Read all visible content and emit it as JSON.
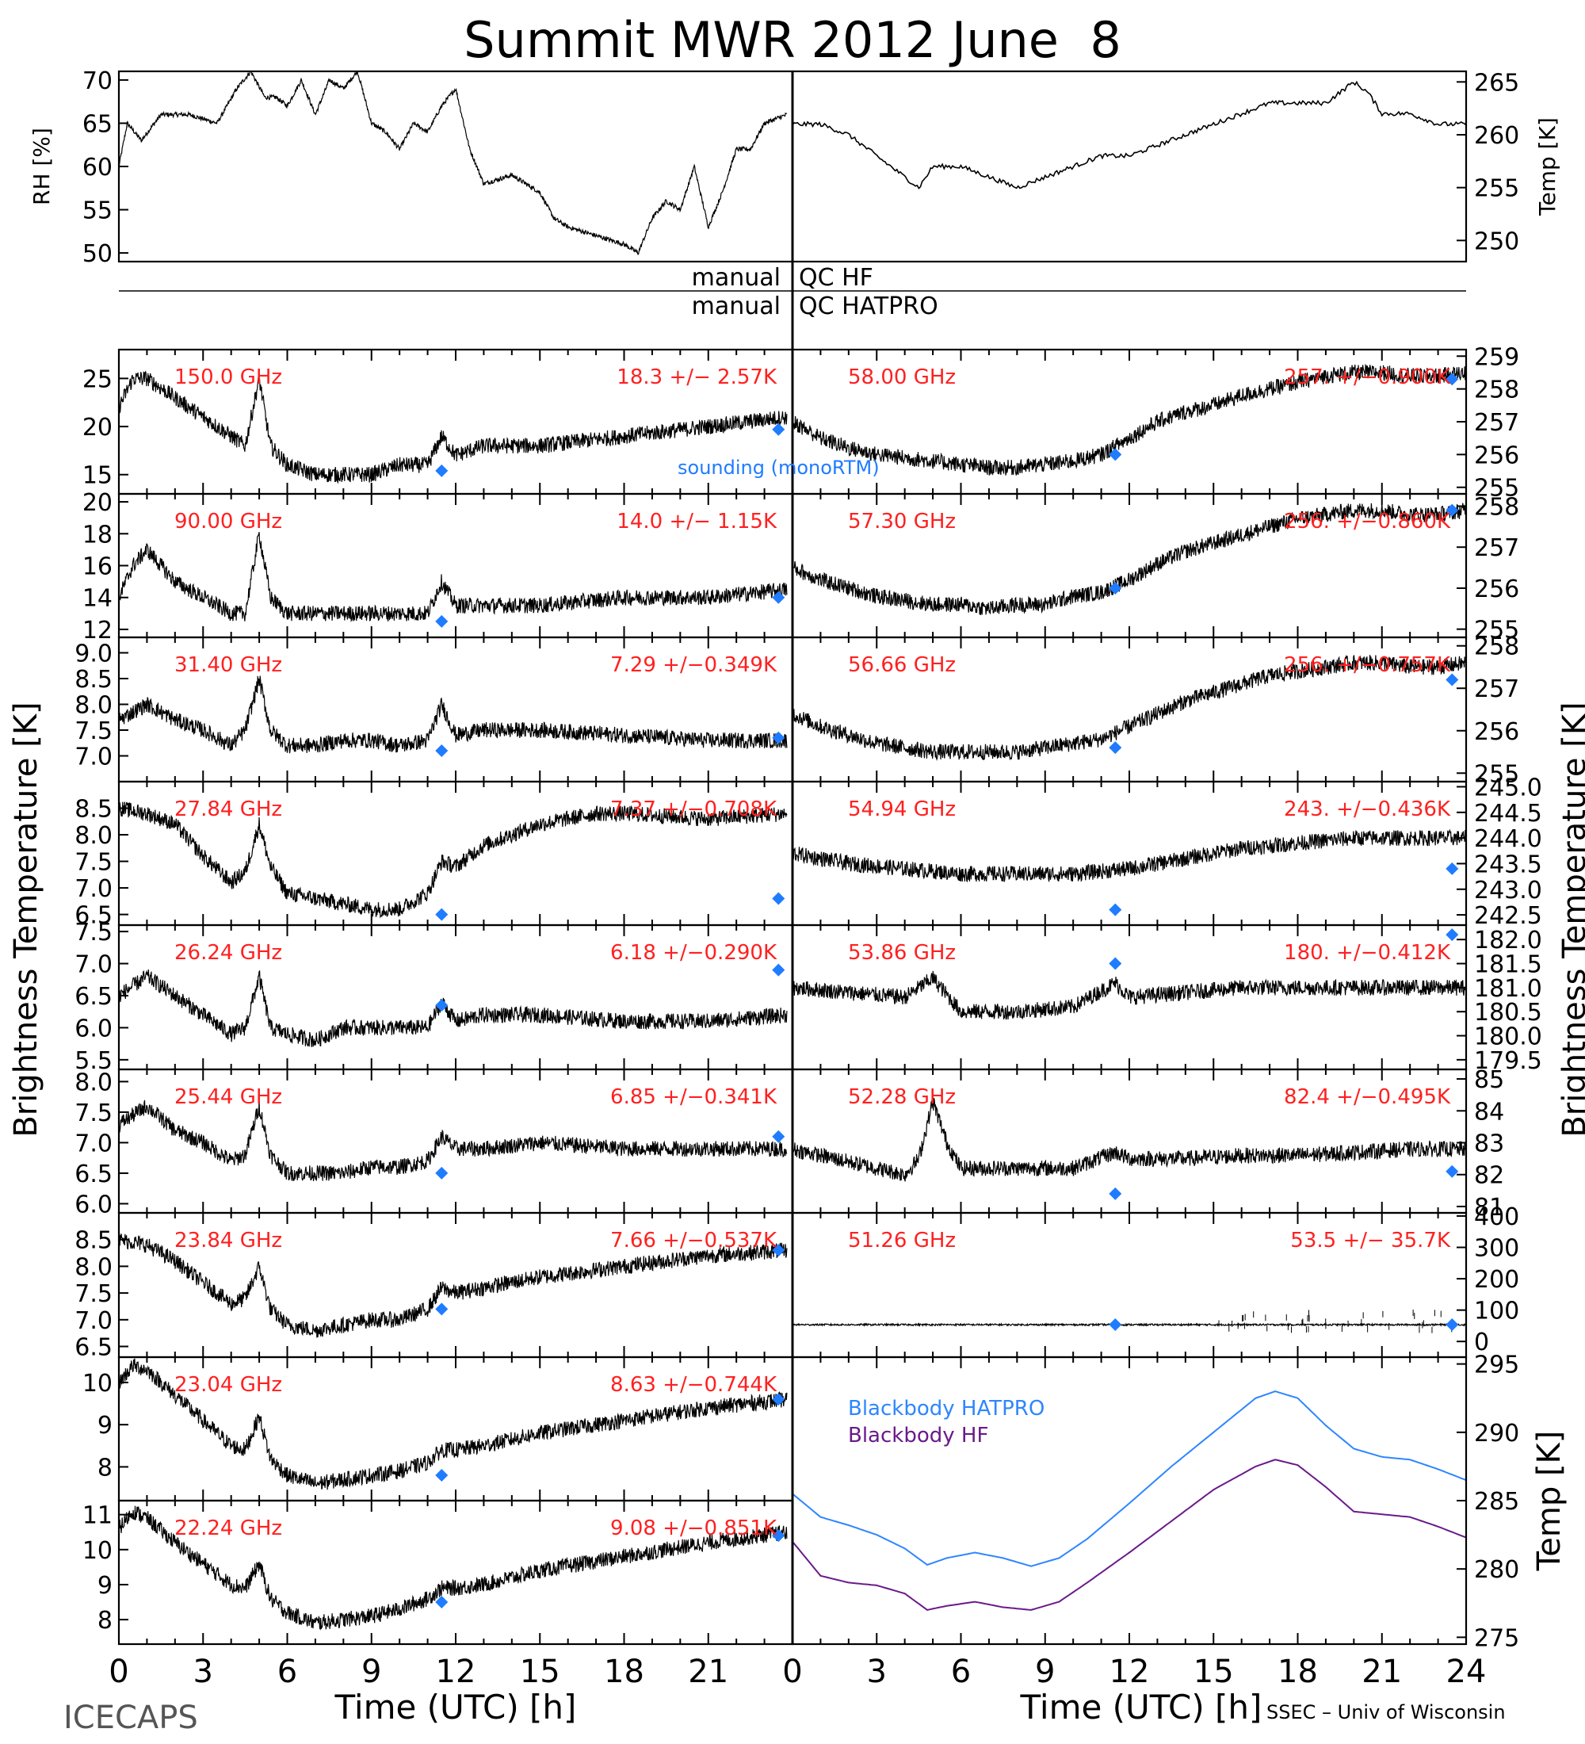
{
  "figure": {
    "title": "Summit MWR 2012 June  8",
    "left_footer": "ICECAPS",
    "right_footer": "SSEC – Univ of Wisconsin",
    "left_ylabel": "Brightness Temperature [K]",
    "right_ylabel": "Brightness Temperature [K]",
    "xlabel": "Time (UTC) [h]",
    "qc_labels": [
      "manual",
      "QC HF",
      "manual",
      "QC HATPRO"
    ],
    "sounding_label": "sounding (monoRTM)",
    "colors": {
      "frequency_label": "#ff2020",
      "sounding": "#1f7cff",
      "blackbody_hatpro": "#2e86ff",
      "blackbody_hf": "#6a1a8a",
      "trace": "#000000"
    }
  },
  "chart_data": [
    {
      "type": "line",
      "id": "rh",
      "ylabel": "RH [%]",
      "ylim": [
        49,
        71
      ],
      "yticks": [
        50,
        55,
        60,
        65,
        70
      ],
      "x": [
        0,
        0.3,
        0.8,
        1.5,
        2.5,
        3.5,
        4.2,
        4.7,
        5.2,
        5.6,
        6.0,
        6.5,
        7.0,
        7.5,
        8.0,
        8.5,
        9.0,
        9.5,
        10.0,
        10.5,
        11.0,
        11.5,
        12.0,
        12.5,
        13.0,
        14.0,
        15.0,
        15.5,
        16.0,
        17.0,
        18.0,
        18.5,
        19.0,
        19.5,
        20.0,
        20.5,
        21.0,
        21.5,
        22.0,
        22.5,
        23.0,
        23.8
      ],
      "values": [
        60,
        65,
        63,
        66,
        66,
        65,
        69,
        71,
        68,
        68,
        67,
        70,
        66,
        70,
        69,
        71,
        65,
        64,
        62,
        65,
        64,
        67,
        69,
        62,
        58,
        59,
        57,
        54,
        53,
        52,
        51,
        50,
        54,
        56,
        55,
        60,
        53,
        57,
        62,
        62,
        65,
        66
      ]
    },
    {
      "type": "line",
      "id": "temp",
      "ylabel": "Temp [K]",
      "ylim": [
        248,
        266
      ],
      "yticks": [
        250,
        255,
        260,
        265
      ],
      "x": [
        0,
        1,
        2,
        3,
        4,
        4.5,
        5,
        6,
        7,
        8,
        9,
        10,
        11,
        12,
        13,
        14,
        15,
        16,
        17,
        18,
        19,
        20,
        20.5,
        21,
        21.5,
        22,
        23,
        24
      ],
      "values": [
        261,
        261,
        260,
        258,
        256,
        255,
        257,
        257,
        256,
        255,
        256,
        257,
        258,
        258,
        259,
        260,
        261,
        262,
        263,
        263,
        263,
        265,
        264,
        262,
        262,
        262,
        261,
        261
      ]
    },
    {
      "type": "line",
      "id": "hf150",
      "frequency": "150.0 GHz",
      "stats": "18.3 +/−  2.57K",
      "ylim": [
        13,
        28
      ],
      "yticks": [
        15,
        20,
        25
      ],
      "x": [
        0,
        0.5,
        1,
        2,
        3,
        4,
        4.5,
        5,
        5.4,
        6,
        7,
        8,
        9,
        10,
        11,
        11.5,
        12,
        13,
        15,
        18,
        21,
        23.8
      ],
      "values": [
        22,
        25,
        25,
        23,
        21,
        19,
        18,
        25,
        18,
        16,
        15,
        15,
        15,
        16,
        16,
        19,
        17,
        18,
        18,
        19,
        20,
        21
      ],
      "sounding": [
        [
          11.5,
          15.4
        ],
        [
          23.5,
          19.7
        ]
      ]
    },
    {
      "type": "line",
      "id": "hf90",
      "frequency": "90.00 GHz",
      "stats": "14.0 +/−  1.15K",
      "ylim": [
        11.5,
        20.5
      ],
      "yticks": [
        12,
        14,
        16,
        18,
        20
      ],
      "x": [
        0,
        0.5,
        1,
        2,
        3,
        4,
        4.5,
        5,
        5.4,
        6,
        7,
        8,
        9,
        10,
        11,
        11.5,
        12,
        13,
        15,
        18,
        21,
        23.8
      ],
      "values": [
        14,
        16,
        17,
        15,
        14,
        13,
        13,
        18,
        14,
        13,
        13,
        13,
        13,
        13,
        13,
        15,
        13.5,
        13.5,
        13.5,
        14,
        14,
        14.5
      ],
      "sounding": [
        [
          11.5,
          12.5
        ],
        [
          23.5,
          14
        ]
      ]
    },
    {
      "type": "line",
      "id": "hf31",
      "frequency": "31.40 GHz",
      "stats": "7.29 +/−0.349K",
      "ylim": [
        6.5,
        9.3
      ],
      "yticks": [
        7.0,
        7.5,
        8.0,
        8.5,
        9.0
      ],
      "x": [
        0,
        1,
        2,
        3,
        4,
        4.5,
        5,
        5.4,
        6,
        7,
        8,
        9,
        10,
        11,
        11.5,
        12,
        13,
        15,
        18,
        21,
        23.8
      ],
      "values": [
        7.7,
        8.0,
        7.7,
        7.5,
        7.2,
        7.5,
        8.5,
        7.5,
        7.2,
        7.2,
        7.3,
        7.3,
        7.2,
        7.3,
        8.0,
        7.4,
        7.5,
        7.5,
        7.4,
        7.3,
        7.3
      ],
      "sounding": [
        [
          11.5,
          7.1
        ],
        [
          23.5,
          7.35
        ]
      ]
    },
    {
      "type": "line",
      "id": "hf27",
      "frequency": "27.84 GHz",
      "stats": "7.37 +/−0.708K",
      "ylim": [
        6.3,
        9.0
      ],
      "yticks": [
        6.5,
        7.0,
        7.5,
        8.0,
        8.5
      ],
      "x": [
        0,
        1,
        2,
        3,
        4,
        4.5,
        5,
        5.4,
        6,
        7,
        8,
        9,
        10,
        11,
        11.5,
        12,
        13,
        15,
        17,
        18,
        21,
        23.8
      ],
      "values": [
        8.5,
        8.4,
        8.2,
        7.6,
        7.1,
        7.3,
        8.2,
        7.4,
        6.9,
        6.8,
        6.7,
        6.6,
        6.6,
        6.9,
        7.5,
        7.4,
        7.8,
        8.2,
        8.4,
        8.4,
        8.3,
        8.4
      ],
      "sounding": [
        [
          11.5,
          6.5
        ],
        [
          23.5,
          6.8
        ]
      ]
    },
    {
      "type": "line",
      "id": "hf26",
      "frequency": "26.24 GHz",
      "stats": "6.18 +/−0.290K",
      "ylim": [
        5.35,
        7.6
      ],
      "yticks": [
        5.5,
        6.0,
        6.5,
        7.0,
        7.5
      ],
      "x": [
        0,
        1,
        2,
        3,
        4,
        4.5,
        5,
        5.4,
        6,
        7,
        8,
        9,
        10,
        11,
        11.5,
        12,
        13,
        15,
        18,
        21,
        23.8
      ],
      "values": [
        6.5,
        6.8,
        6.5,
        6.2,
        5.9,
        6.0,
        6.8,
        6.0,
        5.9,
        5.8,
        6.0,
        6.0,
        6.0,
        6.0,
        6.4,
        6.1,
        6.2,
        6.2,
        6.1,
        6.1,
        6.2
      ],
      "sounding": [
        [
          11.5,
          6.35
        ],
        [
          23.5,
          6.9
        ]
      ]
    },
    {
      "type": "line",
      "id": "hf25",
      "frequency": "25.44 GHz",
      "stats": "6.85 +/−0.341K",
      "ylim": [
        5.85,
        8.2
      ],
      "yticks": [
        6.0,
        6.5,
        7.0,
        7.5,
        8.0
      ],
      "x": [
        0,
        1,
        2,
        3,
        4,
        4.5,
        5,
        5.4,
        6,
        7,
        8,
        9,
        10,
        11,
        11.5,
        12,
        13,
        15,
        18,
        21,
        23.8
      ],
      "values": [
        7.3,
        7.6,
        7.2,
        7.0,
        6.7,
        6.8,
        7.6,
        6.8,
        6.5,
        6.5,
        6.5,
        6.6,
        6.6,
        6.7,
        7.1,
        6.9,
        6.9,
        7.0,
        6.9,
        6.9,
        6.9
      ],
      "sounding": [
        [
          11.5,
          6.5
        ],
        [
          23.5,
          7.1
        ]
      ]
    },
    {
      "type": "line",
      "id": "hf238",
      "frequency": "23.84 GHz",
      "stats": "7.66 +/−0.537K",
      "ylim": [
        6.3,
        9.0
      ],
      "yticks": [
        6.5,
        7.0,
        7.5,
        8.0,
        8.5
      ],
      "x": [
        0,
        1,
        2,
        3,
        4,
        4.5,
        5,
        5.4,
        6,
        7,
        8,
        9,
        10,
        11,
        11.5,
        12,
        13,
        15,
        18,
        21,
        23.8
      ],
      "values": [
        8.5,
        8.4,
        8.1,
        7.7,
        7.3,
        7.4,
        8.0,
        7.2,
        6.9,
        6.8,
        6.9,
        7.0,
        7.0,
        7.2,
        7.6,
        7.5,
        7.6,
        7.8,
        8.0,
        8.2,
        8.3
      ],
      "sounding": [
        [
          11.5,
          7.2
        ],
        [
          23.5,
          8.3
        ]
      ]
    },
    {
      "type": "line",
      "id": "hf230",
      "frequency": "23.04 GHz",
      "stats": "8.63 +/−0.744K",
      "ylim": [
        7.2,
        10.6
      ],
      "yticks": [
        8,
        9,
        10
      ],
      "x": [
        0,
        0.5,
        1,
        2,
        3,
        4,
        4.5,
        5,
        5.4,
        6,
        7,
        8,
        9,
        10,
        11,
        11.5,
        12,
        13,
        15,
        18,
        21,
        23.8
      ],
      "values": [
        10,
        10.4,
        10.3,
        9.7,
        9.1,
        8.5,
        8.4,
        9.2,
        8.2,
        7.8,
        7.6,
        7.7,
        7.8,
        7.9,
        8.1,
        8.4,
        8.4,
        8.5,
        8.8,
        9.1,
        9.4,
        9.6
      ],
      "sounding": [
        [
          11.5,
          7.8
        ],
        [
          23.5,
          9.6
        ]
      ]
    },
    {
      "type": "line",
      "id": "hf222",
      "frequency": "22.24 GHz",
      "stats": "9.08 +/−0.851K",
      "ylim": [
        7.3,
        11.4
      ],
      "yticks": [
        8,
        9,
        10,
        11
      ],
      "x": [
        0,
        0.5,
        1,
        2,
        3,
        4,
        4.5,
        5,
        5.4,
        6,
        7,
        8,
        9,
        10,
        11,
        11.5,
        12,
        13,
        15,
        18,
        21,
        23.8
      ],
      "values": [
        10.6,
        11.1,
        10.9,
        10.2,
        9.6,
        9.0,
        8.9,
        9.6,
        8.6,
        8.2,
        7.9,
        8.0,
        8.1,
        8.3,
        8.6,
        8.9,
        8.9,
        9.0,
        9.4,
        9.8,
        10.2,
        10.5
      ],
      "sounding": [
        [
          11.5,
          8.5
        ],
        [
          23.5,
          10.4
        ]
      ]
    },
    {
      "type": "line",
      "id": "v58",
      "frequency": "58.00 GHz",
      "stats": "257. +/−0.900K",
      "ylim": [
        254.8,
        259.2
      ],
      "yticks": [
        255,
        256,
        257,
        258,
        259
      ],
      "x": [
        0,
        1,
        2,
        3,
        4,
        5,
        6,
        7,
        8,
        9,
        10,
        11,
        12,
        13,
        14,
        15,
        16,
        17,
        18,
        19,
        20,
        21,
        22,
        23,
        24
      ],
      "values": [
        257,
        256.5,
        256.2,
        256,
        255.9,
        255.8,
        255.7,
        255.6,
        255.6,
        255.7,
        255.8,
        256,
        256.5,
        257,
        257.3,
        257.5,
        257.8,
        258,
        258.2,
        258.4,
        258.5,
        258.5,
        258.4,
        258.4,
        258.5
      ],
      "sounding": [
        [
          11.5,
          256
        ],
        [
          23.5,
          258.3
        ]
      ]
    },
    {
      "type": "line",
      "id": "v573",
      "frequency": "57.30 GHz",
      "stats": "256. +/−0.860K",
      "ylim": [
        254.8,
        258.3
      ],
      "yticks": [
        255,
        256,
        257,
        258
      ],
      "x": [
        0,
        1,
        2,
        3,
        4,
        5,
        6,
        7,
        8,
        9,
        10,
        11,
        12,
        13,
        14,
        15,
        16,
        17,
        18,
        19,
        20,
        21,
        22,
        23,
        24
      ],
      "values": [
        256.5,
        256.2,
        256,
        255.8,
        255.7,
        255.6,
        255.6,
        255.5,
        255.6,
        255.6,
        255.8,
        255.9,
        256.2,
        256.6,
        256.9,
        257.1,
        257.3,
        257.5,
        257.7,
        257.8,
        257.9,
        257.9,
        257.8,
        257.8,
        257.9
      ],
      "sounding": [
        [
          11.5,
          256
        ],
        [
          23.5,
          257.9
        ]
      ]
    },
    {
      "type": "line",
      "id": "v5666",
      "frequency": "56.66 GHz",
      "stats": "256. +/−0.757K",
      "ylim": [
        254.8,
        258.2
      ],
      "yticks": [
        255,
        256,
        257,
        258
      ],
      "x": [
        0,
        1,
        2,
        3,
        4,
        5,
        6,
        7,
        8,
        9,
        10,
        11,
        12,
        13,
        14,
        15,
        16,
        17,
        18,
        19,
        20,
        21,
        22,
        23,
        24
      ],
      "values": [
        256.4,
        256.1,
        255.9,
        255.7,
        255.6,
        255.5,
        255.5,
        255.5,
        255.5,
        255.6,
        255.7,
        255.8,
        256.1,
        256.4,
        256.7,
        256.9,
        257.1,
        257.3,
        257.4,
        257.5,
        257.6,
        257.6,
        257.5,
        257.5,
        257.6
      ],
      "sounding": [
        [
          11.5,
          255.6
        ],
        [
          23.5,
          257.2
        ]
      ]
    },
    {
      "type": "line",
      "id": "v5494",
      "frequency": "54.94 GHz",
      "stats": "243. +/−0.436K",
      "ylim": [
        242.3,
        245.1
      ],
      "yticks": [
        242.5,
        243.0,
        243.5,
        244.0,
        244.5,
        245.0
      ],
      "x": [
        0,
        2,
        4,
        6,
        8,
        10,
        12,
        14,
        16,
        18,
        20,
        22,
        24
      ],
      "values": [
        243.7,
        243.5,
        243.4,
        243.3,
        243.3,
        243.3,
        243.4,
        243.6,
        243.8,
        243.9,
        244.0,
        244.0,
        244.0
      ],
      "sounding": [
        [
          11.5,
          242.6
        ],
        [
          23.5,
          243.4
        ]
      ]
    },
    {
      "type": "line",
      "id": "v5386",
      "frequency": "53.86 GHz",
      "stats": "180. +/−0.412K",
      "ylim": [
        179.3,
        182.3
      ],
      "yticks": [
        179.5,
        180.0,
        180.5,
        181.0,
        181.5,
        182.0
      ],
      "x": [
        0,
        2,
        4,
        5,
        6,
        8,
        10,
        11.5,
        12,
        14,
        16,
        18,
        20,
        22,
        24
      ],
      "values": [
        181.0,
        180.9,
        180.8,
        181.2,
        180.5,
        180.5,
        180.6,
        181.1,
        180.8,
        180.9,
        181.0,
        181.0,
        181.0,
        181.0,
        181.0
      ],
      "sounding": [
        [
          11.5,
          181.5
        ],
        [
          23.5,
          182.1
        ]
      ]
    },
    {
      "type": "line",
      "id": "v5228",
      "frequency": "52.28 GHz",
      "stats": "82.4 +/−0.495K",
      "ylim": [
        80.8,
        85.3
      ],
      "yticks": [
        81,
        82,
        83,
        84,
        85
      ],
      "x": [
        0,
        1,
        2,
        3,
        4,
        4.5,
        5,
        5.5,
        6,
        8,
        10,
        11.5,
        12,
        14,
        16,
        18,
        20,
        22,
        24
      ],
      "values": [
        82.8,
        82.6,
        82.4,
        82.2,
        82.0,
        82.5,
        84.3,
        83.0,
        82.2,
        82.2,
        82.2,
        82.7,
        82.5,
        82.5,
        82.6,
        82.6,
        82.7,
        82.8,
        82.8
      ],
      "sounding": [
        [
          11.5,
          81.4
        ],
        [
          23.5,
          82.1
        ]
      ]
    },
    {
      "type": "line",
      "id": "v5126",
      "frequency": "51.26 GHz",
      "stats": "53.5 +/−  35.7K",
      "ylim": [
        -50,
        410
      ],
      "yticks": [
        0,
        100,
        200,
        300,
        400
      ],
      "x": [
        0,
        24
      ],
      "values": [
        53.5,
        53.5
      ],
      "sounding": [
        [
          11.5,
          53.5
        ],
        [
          23.5,
          53.5
        ]
      ]
    },
    {
      "type": "line",
      "id": "blackbody",
      "ylabel": "Temp [K]",
      "ylim": [
        274.5,
        295.5
      ],
      "yticks": [
        275,
        280,
        285,
        290,
        295
      ],
      "x": [
        0,
        1,
        2,
        3,
        4,
        4.8,
        5.5,
        6.5,
        7.5,
        8.5,
        9.5,
        10.5,
        12,
        13.5,
        15,
        16.5,
        17.2,
        18,
        19,
        20,
        21,
        22,
        23,
        24
      ],
      "series": [
        {
          "name": "Blackbody HATPRO",
          "values": [
            285.5,
            283.8,
            283.2,
            282.5,
            281.5,
            280.3,
            280.8,
            281.2,
            280.8,
            280.2,
            280.8,
            282.2,
            284.8,
            287.5,
            290.0,
            292.5,
            293.0,
            292.5,
            290.5,
            288.8,
            288.2,
            288.0,
            287.3,
            286.5
          ]
        },
        {
          "name": "Blackbody HF",
          "values": [
            282.0,
            279.5,
            279.0,
            278.8,
            278.2,
            277.0,
            277.3,
            277.6,
            277.2,
            277.0,
            277.6,
            279.0,
            281.2,
            283.5,
            285.8,
            287.5,
            288.0,
            287.6,
            286.0,
            284.2,
            284.0,
            283.8,
            283.1,
            282.3
          ]
        }
      ]
    }
  ]
}
